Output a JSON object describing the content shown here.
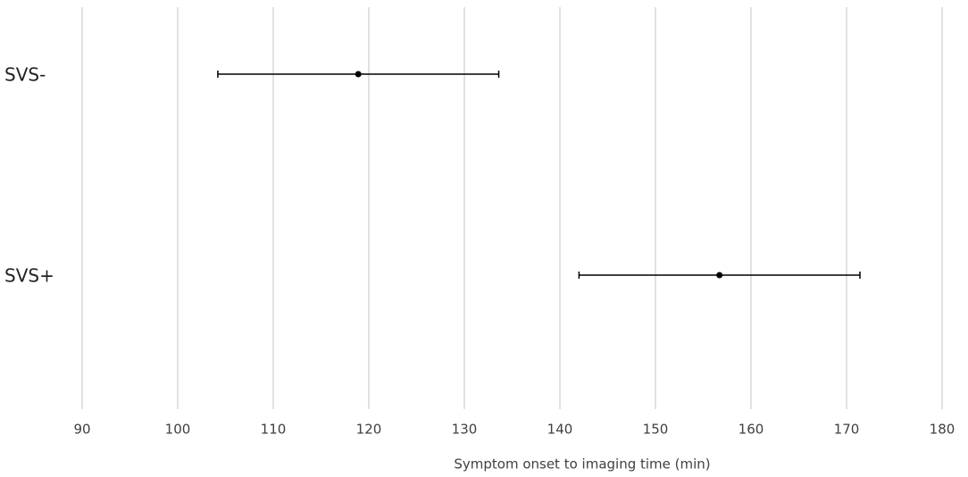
{
  "chart_data": {
    "type": "errorbar",
    "x_label": "Symptom onset to imaging time (min)",
    "categories": [
      "SVS-",
      "SVS+"
    ],
    "values": [
      118.9,
      156.7
    ],
    "errors": [
      14.7,
      14.7
    ],
    "color": "#000000",
    "xlim": [
      90,
      180
    ],
    "xticks": [
      90,
      100,
      110,
      120,
      130,
      140,
      150,
      160,
      170,
      180
    ],
    "grid": true
  }
}
